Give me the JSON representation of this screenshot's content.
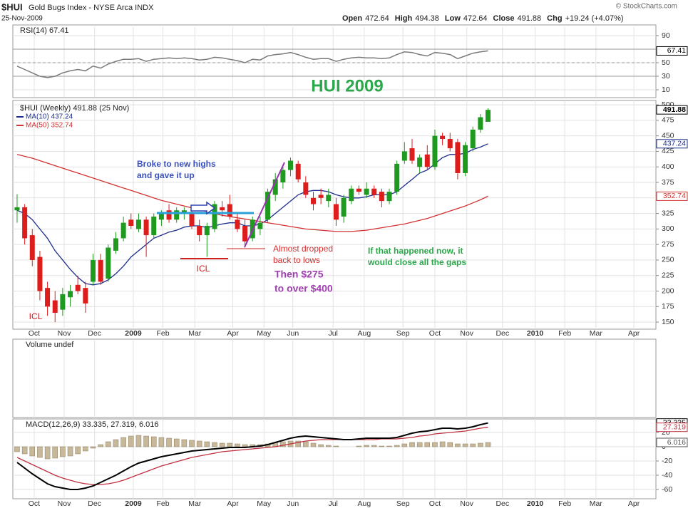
{
  "header": {
    "symbol": "$HUI",
    "name": "Gold Bugs Index - NYSE Arca INDX",
    "date": "25-Nov-2009",
    "copyright": "© StockCharts.com",
    "quote": [
      {
        "label": "Open",
        "value": "472.64"
      },
      {
        "label": "High",
        "value": "494.38"
      },
      {
        "label": "Low",
        "value": "472.64"
      },
      {
        "label": "Close",
        "value": "491.88"
      },
      {
        "label": "Chg",
        "value": "+19.24 (+4.07%)"
      }
    ]
  },
  "chart_data": [
    {
      "type": "line",
      "label": "RSI(14) 67.41",
      "color": "#7a7a7a",
      "ylim": [
        -0.5,
        102.6
      ],
      "yticks": [
        10,
        30,
        50,
        70,
        90
      ],
      "levels": [
        30,
        50,
        70
      ],
      "values": [
        45,
        40,
        35,
        30,
        28,
        30,
        35,
        38,
        40,
        38,
        45,
        42,
        48,
        52,
        55,
        55,
        56,
        52,
        55,
        56,
        57,
        56,
        57,
        56,
        54,
        55,
        58,
        57,
        55,
        53,
        50,
        55,
        54,
        60,
        62,
        63,
        65,
        62,
        58,
        55,
        56,
        56,
        52,
        55,
        57,
        58,
        57,
        57,
        56,
        57,
        62,
        66,
        65,
        62,
        60,
        65,
        64,
        62,
        56,
        60,
        64,
        66,
        67.41
      ]
    },
    {
      "type": "candlestick",
      "title": "HUI 2009",
      "label": "$HUI (Weekly) 491.88 (25 Nov)",
      "ylim": [
        138.6,
        507
      ],
      "yticks": [
        150,
        175,
        200,
        225,
        250,
        275,
        300,
        325,
        350,
        375,
        400,
        425,
        450,
        475,
        500
      ],
      "xlim": [
        -0.56,
        84.1
      ],
      "xticks": [
        {
          "value": 2.25,
          "label": "Oct"
        },
        {
          "value": 6.2,
          "label": "Nov"
        },
        {
          "value": 10.2,
          "label": "Dec"
        },
        {
          "value": 15.3,
          "label": "2009"
        },
        {
          "value": 19.2,
          "label": "Feb"
        },
        {
          "value": 23.4,
          "label": "Mar"
        },
        {
          "value": 28.4,
          "label": "Apr"
        },
        {
          "value": 32.5,
          "label": "May"
        },
        {
          "value": 36.3,
          "label": "Jun"
        },
        {
          "value": 41.6,
          "label": "Jul"
        },
        {
          "value": 45.7,
          "label": "Aug"
        },
        {
          "value": 50.8,
          "label": "Sep"
        },
        {
          "value": 55,
          "label": "Oct"
        },
        {
          "value": 59.2,
          "label": "Nov"
        },
        {
          "value": 63.9,
          "label": "Dec"
        },
        {
          "value": 68.2,
          "label": "2010"
        },
        {
          "value": 72.1,
          "label": "Feb"
        },
        {
          "value": 76.2,
          "label": "Mar"
        },
        {
          "value": 81.2,
          "label": "Apr"
        }
      ],
      "up_color": "#1e9a1e",
      "down_color": "#dd1c1c",
      "open": [
        330,
        335,
        290,
        255,
        205,
        185,
        170,
        190,
        210,
        205,
        215,
        250,
        220,
        265,
        285,
        315,
        300,
        315,
        290,
        315,
        330,
        315,
        325,
        325,
        305,
        290,
        300,
        335,
        340,
        315,
        305,
        285,
        300,
        315,
        355,
        375,
        395,
        405,
        375,
        350,
        355,
        345,
        340,
        320,
        345,
        365,
        355,
        365,
        360,
        345,
        360,
        410,
        430,
        400,
        420,
        400,
        450,
        445,
        440,
        390,
        430,
        460,
        472.64
      ],
      "high": [
        356,
        340,
        300,
        265,
        215,
        200,
        205,
        210,
        225,
        215,
        260,
        260,
        275,
        295,
        320,
        325,
        325,
        320,
        325,
        330,
        340,
        335,
        335,
        335,
        315,
        310,
        345,
        345,
        355,
        325,
        315,
        320,
        320,
        365,
        390,
        400,
        415,
        410,
        385,
        360,
        365,
        365,
        350,
        355,
        370,
        370,
        375,
        370,
        365,
        365,
        410,
        440,
        445,
        420,
        435,
        460,
        455,
        455,
        445,
        440,
        465,
        485,
        494.38
      ],
      "low": [
        310,
        275,
        240,
        185,
        160,
        150,
        160,
        175,
        195,
        165,
        210,
        210,
        215,
        260,
        280,
        300,
        295,
        255,
        285,
        305,
        310,
        310,
        315,
        300,
        280,
        255,
        295,
        320,
        315,
        295,
        270,
        280,
        290,
        310,
        345,
        365,
        385,
        375,
        350,
        330,
        340,
        335,
        305,
        310,
        340,
        355,
        350,
        350,
        335,
        340,
        355,
        405,
        405,
        390,
        395,
        395,
        435,
        425,
        380,
        385,
        425,
        455,
        472.64
      ],
      "close": [
        335,
        285,
        250,
        200,
        175,
        165,
        195,
        200,
        200,
        180,
        250,
        215,
        270,
        285,
        310,
        305,
        315,
        290,
        320,
        325,
        315,
        330,
        330,
        305,
        290,
        305,
        340,
        330,
        320,
        300,
        280,
        315,
        310,
        360,
        380,
        395,
        410,
        380,
        355,
        340,
        350,
        355,
        315,
        350,
        365,
        360,
        365,
        355,
        345,
        360,
        405,
        425,
        410,
        415,
        400,
        450,
        445,
        430,
        390,
        435,
        460,
        480,
        491.88
      ],
      "overlays": [
        {
          "name": "MA(10) 437.24",
          "color": "#1c2c8c",
          "values": [
            330,
            325,
            315,
            300,
            285,
            265,
            250,
            235,
            222,
            212,
            210,
            212,
            218,
            228,
            240,
            255,
            265,
            275,
            285,
            290,
            295,
            298,
            303,
            305,
            305,
            302,
            305,
            308,
            310,
            310,
            305,
            305,
            308,
            315,
            325,
            335,
            345,
            355,
            360,
            362,
            362,
            360,
            355,
            352,
            350,
            350,
            352,
            355,
            355,
            355,
            360,
            370,
            380,
            390,
            395,
            405,
            415,
            420,
            420,
            422,
            428,
            432,
            437.24
          ]
        },
        {
          "name": "MA(50) 352.74",
          "color": "#d23232",
          "values": [
            420,
            417,
            414,
            410,
            406,
            402,
            398,
            394,
            390,
            386,
            382,
            378,
            374,
            370,
            366,
            362,
            358,
            354,
            350,
            346,
            343,
            340,
            337,
            334,
            331,
            328,
            325,
            322,
            320,
            318,
            316,
            314,
            312,
            310,
            308,
            306,
            304,
            302,
            300,
            299,
            298,
            297,
            296,
            296,
            296,
            297,
            298,
            300,
            302,
            304,
            306,
            308,
            311,
            314,
            317,
            321,
            325,
            329,
            333,
            337,
            342,
            347,
            352.74
          ]
        }
      ],
      "annotations": [
        {
          "lines": [
            "Broke to new highs",
            "and gave it up"
          ]
        },
        {
          "lines": [
            "ICL"
          ]
        },
        {
          "lines": [
            "ICL"
          ]
        },
        {
          "lines": [
            "Almost dropped",
            "back to lows"
          ]
        },
        {
          "lines": [
            "Then $275",
            "to over $400"
          ]
        },
        {
          "lines": [
            "If that happened now, it",
            "would close all the gaps"
          ]
        }
      ]
    },
    {
      "type": "volume",
      "label": "Volume undef"
    },
    {
      "type": "macd",
      "label": "MACD(12,26,9) 33.335, 27.319, 6.016",
      "ylim": [
        -73,
        39
      ],
      "yticks": [
        20,
        0,
        -20,
        -40,
        -60
      ],
      "xlim": [
        -0.56,
        84.1
      ],
      "xticks": [
        {
          "value": 2.25,
          "label": "Oct"
        },
        {
          "value": 6.2,
          "label": "Nov"
        },
        {
          "value": 10.2,
          "label": "Dec"
        },
        {
          "value": 15.3,
          "label": "2009"
        },
        {
          "value": 19.2,
          "label": "Feb"
        },
        {
          "value": 23.4,
          "label": "Mar"
        },
        {
          "value": 28.4,
          "label": "Apr"
        },
        {
          "value": 32.5,
          "label": "May"
        },
        {
          "value": 36.3,
          "label": "Jun"
        },
        {
          "value": 41.6,
          "label": "Jul"
        },
        {
          "value": 45.7,
          "label": "Aug"
        },
        {
          "value": 50.8,
          "label": "Sep"
        },
        {
          "value": 55,
          "label": "Oct"
        },
        {
          "value": 59.2,
          "label": "Nov"
        },
        {
          "value": 63.9,
          "label": "Dec"
        },
        {
          "value": 68.2,
          "label": "2010"
        },
        {
          "value": 72.1,
          "label": "Feb"
        },
        {
          "value": 76.2,
          "label": "Mar"
        },
        {
          "value": 81.2,
          "label": "Apr"
        }
      ],
      "macd_color": "#000000",
      "signal_color": "#c03040",
      "histogram_color": "#c8b89a",
      "macd": [
        -22,
        -30,
        -38,
        -45,
        -52,
        -56,
        -58,
        -60,
        -60,
        -58,
        -55,
        -50,
        -45,
        -40,
        -34,
        -28,
        -23,
        -20,
        -17,
        -14,
        -12,
        -10,
        -8,
        -6,
        -5,
        -4,
        -3,
        -2,
        -1,
        -1,
        -1,
        0,
        1,
        3,
        6,
        9,
        12,
        14,
        15,
        14,
        13,
        12,
        11,
        10,
        10,
        11,
        12,
        12,
        12,
        12,
        13,
        16,
        19,
        21,
        22,
        24,
        26,
        26,
        25,
        26,
        28,
        31,
        33.335
      ],
      "signal": [
        -15,
        -20,
        -25,
        -30,
        -35,
        -40,
        -44,
        -47,
        -50,
        -52,
        -53,
        -53,
        -52,
        -50,
        -47,
        -43,
        -39,
        -35,
        -31,
        -27,
        -24,
        -21,
        -18,
        -15,
        -13,
        -11,
        -9,
        -7,
        -6,
        -5,
        -4,
        -3,
        -2,
        -1,
        0,
        2,
        4,
        6,
        8,
        9,
        10,
        10,
        10,
        10,
        10,
        10,
        10,
        10,
        11,
        11,
        11,
        12,
        13,
        15,
        16,
        18,
        19,
        20,
        21,
        22,
        24,
        26,
        27.319
      ],
      "histogram": [
        -7,
        -10,
        -13,
        -15,
        -17,
        -16,
        -14,
        -13,
        -10,
        -6,
        -2,
        3,
        7,
        10,
        13,
        15,
        16,
        15,
        14,
        13,
        12,
        11,
        10,
        9,
        8,
        7,
        6,
        5,
        5,
        4,
        3,
        3,
        3,
        4,
        6,
        7,
        8,
        8,
        7,
        5,
        3,
        2,
        1,
        0,
        0,
        1,
        2,
        2,
        1,
        1,
        2,
        4,
        6,
        6,
        6,
        6,
        7,
        6,
        4,
        4,
        4,
        5,
        6.016
      ]
    }
  ]
}
